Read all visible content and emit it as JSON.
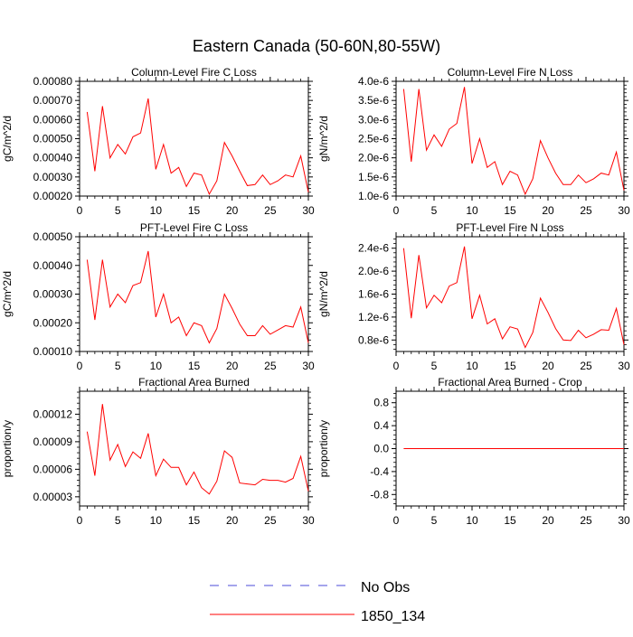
{
  "page": {
    "title": "Eastern Canada (50-60N,80-55W)"
  },
  "legend": {
    "items": [
      {
        "label": "No Obs",
        "color": "#4b4bd8",
        "dashed": true
      },
      {
        "label": "1850_134",
        "color": "#ff0000",
        "dashed": false
      }
    ]
  },
  "chart_data": [
    {
      "type": "line",
      "title": "Column-Level Fire C Loss",
      "ylabel": "gC/m^2/d",
      "xlim": [
        0,
        30
      ],
      "ylim": [
        0.0002,
        0.0008
      ],
      "xticks": [
        0,
        5,
        10,
        15,
        20,
        25,
        30
      ],
      "yticks": [
        0.0002,
        0.0003,
        0.0004,
        0.0005,
        0.0006,
        0.0007,
        0.0008
      ],
      "ytick_labels": [
        "0.00020",
        "0.00030",
        "0.00040",
        "0.00050",
        "0.00060",
        "0.00070",
        "0.00080"
      ],
      "series": [
        {
          "name": "1850_134",
          "color": "#ff0000",
          "x": [
            1,
            2,
            3,
            4,
            5,
            6,
            7,
            8,
            9,
            10,
            11,
            12,
            13,
            14,
            15,
            16,
            17,
            18,
            19,
            20,
            21,
            22,
            23,
            24,
            25,
            26,
            27,
            28,
            29,
            30
          ],
          "y": [
            0.00064,
            0.00033,
            0.00067,
            0.0004,
            0.00047,
            0.00042,
            0.00051,
            0.00053,
            0.00071,
            0.00034,
            0.00047,
            0.00032,
            0.00035,
            0.00025,
            0.00032,
            0.00031,
            0.00021,
            0.00028,
            0.00048,
            0.00041,
            0.00033,
            0.000255,
            0.00026,
            0.00031,
            0.00026,
            0.00028,
            0.00031,
            0.0003,
            0.00041,
            0.00022
          ]
        }
      ]
    },
    {
      "type": "line",
      "title": "Column-Level Fire N Loss",
      "ylabel": "gN/m^2/d",
      "xlim": [
        0,
        30
      ],
      "ylim": [
        1e-06,
        4e-06
      ],
      "xticks": [
        0,
        5,
        10,
        15,
        20,
        25,
        30
      ],
      "yticks": [
        1e-06,
        1.5e-06,
        2e-06,
        2.5e-06,
        3e-06,
        3.5e-06,
        4e-06
      ],
      "ytick_labels": [
        "1.0e-6",
        "1.5e-6",
        "2.0e-6",
        "2.5e-6",
        "3.0e-6",
        "3.5e-6",
        "4.0e-6"
      ],
      "series": [
        {
          "name": "1850_134",
          "color": "#ff0000",
          "x": [
            1,
            2,
            3,
            4,
            5,
            6,
            7,
            8,
            9,
            10,
            11,
            12,
            13,
            14,
            15,
            16,
            17,
            18,
            19,
            20,
            21,
            22,
            23,
            24,
            25,
            26,
            27,
            28,
            29,
            30
          ],
          "y": [
            3.8e-06,
            1.9e-06,
            3.8e-06,
            2.2e-06,
            2.6e-06,
            2.3e-06,
            2.75e-06,
            2.9e-06,
            3.85e-06,
            1.85e-06,
            2.5e-06,
            1.75e-06,
            1.9e-06,
            1.3e-06,
            1.65e-06,
            1.55e-06,
            1.05e-06,
            1.45e-06,
            2.45e-06,
            2e-06,
            1.6e-06,
            1.3e-06,
            1.3e-06,
            1.55e-06,
            1.35e-06,
            1.45e-06,
            1.6e-06,
            1.55e-06,
            2.15e-06,
            1.15e-06
          ]
        }
      ]
    },
    {
      "type": "line",
      "title": "PFT-Level Fire C Loss",
      "ylabel": "gC/m^2/d",
      "xlim": [
        0,
        30
      ],
      "ylim": [
        0.0001,
        0.0005
      ],
      "xticks": [
        0,
        5,
        10,
        15,
        20,
        25,
        30
      ],
      "yticks": [
        0.0001,
        0.0002,
        0.0003,
        0.0004,
        0.0005
      ],
      "ytick_labels": [
        "0.00010",
        "0.00020",
        "0.00030",
        "0.00040",
        "0.00050"
      ],
      "series": [
        {
          "name": "1850_134",
          "color": "#ff0000",
          "x": [
            1,
            2,
            3,
            4,
            5,
            6,
            7,
            8,
            9,
            10,
            11,
            12,
            13,
            14,
            15,
            16,
            17,
            18,
            19,
            20,
            21,
            22,
            23,
            24,
            25,
            26,
            27,
            28,
            29,
            30
          ],
          "y": [
            0.00042,
            0.00021,
            0.00042,
            0.000255,
            0.0003,
            0.00027,
            0.00033,
            0.00034,
            0.00045,
            0.00022,
            0.0003,
            0.0002,
            0.00022,
            0.000155,
            0.0002,
            0.00019,
            0.00013,
            0.00018,
            0.0003,
            0.00025,
            0.000195,
            0.000155,
            0.000155,
            0.00019,
            0.00016,
            0.000175,
            0.00019,
            0.000185,
            0.000255,
            0.00013
          ]
        }
      ]
    },
    {
      "type": "line",
      "title": "PFT-Level Fire N Loss",
      "ylabel": "gN/m^2/d",
      "xlim": [
        0,
        30
      ],
      "ylim": [
        6e-07,
        2.6e-06
      ],
      "xticks": [
        0,
        5,
        10,
        15,
        20,
        25,
        30
      ],
      "yticks": [
        8e-07,
        1.2e-06,
        1.6e-06,
        2e-06,
        2.4e-06
      ],
      "ytick_labels": [
        "0.8e-6",
        "1.2e-6",
        "1.6e-6",
        "2.0e-6",
        "2.4e-6"
      ],
      "series": [
        {
          "name": "1850_134",
          "color": "#ff0000",
          "x": [
            1,
            2,
            3,
            4,
            5,
            6,
            7,
            8,
            9,
            10,
            11,
            12,
            13,
            14,
            15,
            16,
            17,
            18,
            19,
            20,
            21,
            22,
            23,
            24,
            25,
            26,
            27,
            28,
            29,
            30
          ],
          "y": [
            2.4e-06,
            1.18e-06,
            2.28e-06,
            1.36e-06,
            1.58e-06,
            1.45e-06,
            1.74e-06,
            1.8e-06,
            2.43e-06,
            1.17e-06,
            1.58e-06,
            1.08e-06,
            1.17e-06,
            8.2e-07,
            1.03e-06,
            9.9e-07,
            6.7e-07,
            9.3e-07,
            1.53e-06,
            1.28e-06,
            1e-06,
            8e-07,
            7.9e-07,
            9.7e-07,
            8.4e-07,
            9e-07,
            9.8e-07,
            9.7e-07,
            1.35e-06,
            7.2e-07
          ]
        }
      ]
    },
    {
      "type": "line",
      "title": "Fractional Area Burned",
      "ylabel": "proportion/y",
      "xlim": [
        0,
        30
      ],
      "ylim": [
        2e-05,
        0.000145
      ],
      "xticks": [
        0,
        5,
        10,
        15,
        20,
        25,
        30
      ],
      "yticks": [
        3e-05,
        6e-05,
        9e-05,
        0.00012
      ],
      "ytick_labels": [
        "0.00003",
        "0.00006",
        "0.00009",
        "0.00012"
      ],
      "series": [
        {
          "name": "1850_134",
          "color": "#ff0000",
          "x": [
            1,
            2,
            3,
            4,
            5,
            6,
            7,
            8,
            9,
            10,
            11,
            12,
            13,
            14,
            15,
            16,
            17,
            18,
            19,
            20,
            21,
            22,
            23,
            24,
            25,
            26,
            27,
            28,
            29,
            30
          ],
          "y": [
            0.000101,
            5.3e-05,
            0.000131,
            7e-05,
            8.7e-05,
            6.3e-05,
            7.9e-05,
            7.2e-05,
            9.9e-05,
            5.3e-05,
            7.1e-05,
            6.2e-05,
            6.2e-05,
            4.3e-05,
            5.7e-05,
            4e-05,
            3.3e-05,
            4.7e-05,
            8e-05,
            7.3e-05,
            4.5e-05,
            4.4e-05,
            4.3e-05,
            4.9e-05,
            4.8e-05,
            4.8e-05,
            4.6e-05,
            5e-05,
            7.4e-05,
            3.6e-05
          ]
        }
      ]
    },
    {
      "type": "line",
      "title": "Fractional Area Burned - Crop",
      "ylabel": "proportion/y",
      "xlim": [
        0,
        30
      ],
      "ylim": [
        -1.0,
        1.0
      ],
      "xticks": [
        0,
        5,
        10,
        15,
        20,
        25,
        30
      ],
      "yticks": [
        -0.8,
        -0.4,
        0.0,
        0.4,
        0.8
      ],
      "ytick_labels": [
        "-0.8",
        "-0.4",
        "0.0",
        "0.4",
        "0.8"
      ],
      "series": [
        {
          "name": "1850_134",
          "color": "#ff0000",
          "x": [
            1,
            2,
            3,
            4,
            5,
            6,
            7,
            8,
            9,
            10,
            11,
            12,
            13,
            14,
            15,
            16,
            17,
            18,
            19,
            20,
            21,
            22,
            23,
            24,
            25,
            26,
            27,
            28,
            29,
            30
          ],
          "y": [
            0,
            0,
            0,
            0,
            0,
            0,
            0,
            0,
            0,
            0,
            0,
            0,
            0,
            0,
            0,
            0,
            0,
            0,
            0,
            0,
            0,
            0,
            0,
            0,
            0,
            0,
            0,
            0,
            0,
            0
          ]
        }
      ]
    }
  ]
}
